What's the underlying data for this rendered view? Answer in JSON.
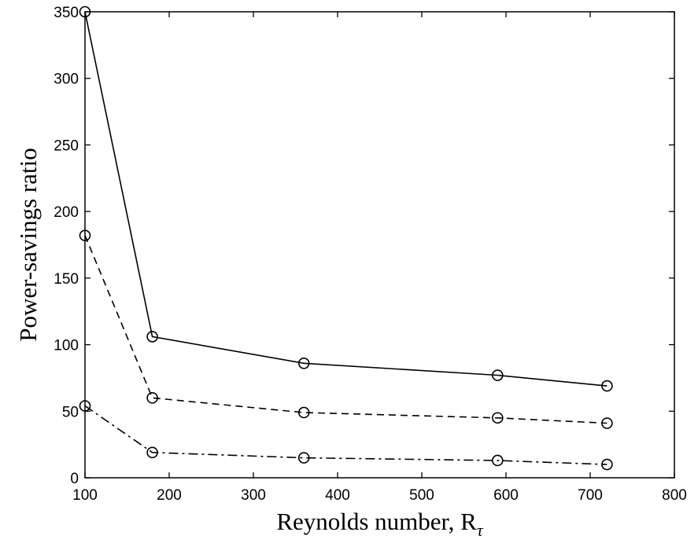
{
  "chart_data": {
    "type": "line",
    "title": "",
    "xlabel": "Reynolds number, R",
    "xlabel_subscript": "τ",
    "ylabel": "Power-savings ratio",
    "xlim": [
      100,
      800
    ],
    "ylim": [
      0,
      350
    ],
    "xticks": [
      100,
      200,
      300,
      400,
      500,
      600,
      700,
      800
    ],
    "yticks": [
      0,
      50,
      100,
      150,
      200,
      250,
      300,
      350
    ],
    "grid": false,
    "legend": "none",
    "marker": "circle",
    "x": [
      100,
      180,
      360,
      590,
      720
    ],
    "series": [
      {
        "line_style": "solid",
        "color": "#000000",
        "values": [
          350,
          106,
          86,
          77,
          69
        ]
      },
      {
        "line_style": "dashed",
        "color": "#000000",
        "values": [
          182,
          60,
          49,
          45,
          41
        ]
      },
      {
        "line_style": "dash-dot",
        "color": "#000000",
        "values": [
          54,
          19,
          15,
          13,
          10
        ]
      }
    ]
  }
}
